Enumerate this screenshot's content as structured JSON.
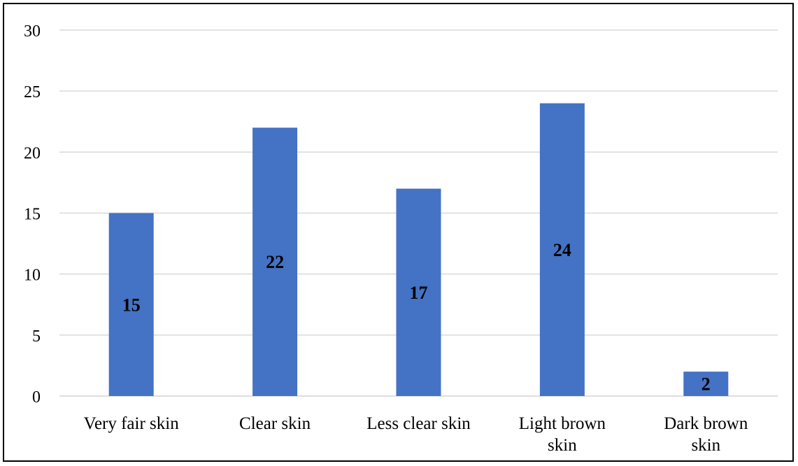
{
  "chart_data": {
    "type": "bar",
    "title": "",
    "xlabel": "",
    "ylabel": "",
    "categories": [
      "Very fair skin",
      "Clear skin",
      "Less clear skin",
      "Light brown skin",
      "Dark brown skin"
    ],
    "category_lines": [
      [
        "Very fair skin"
      ],
      [
        "Clear skin"
      ],
      [
        "Less clear skin"
      ],
      [
        "Light brown",
        "skin"
      ],
      [
        "Dark brown",
        "skin"
      ]
    ],
    "values": [
      15,
      22,
      17,
      24,
      2
    ],
    "data_labels": [
      "15",
      "22",
      "17",
      "24",
      "2"
    ],
    "ylim": [
      0,
      30
    ],
    "yticks": [
      0,
      5,
      10,
      15,
      20,
      25,
      30
    ],
    "grid": true,
    "legend": "none",
    "bar_color": "#4472C4",
    "grid_color": "#D9D9D9"
  }
}
